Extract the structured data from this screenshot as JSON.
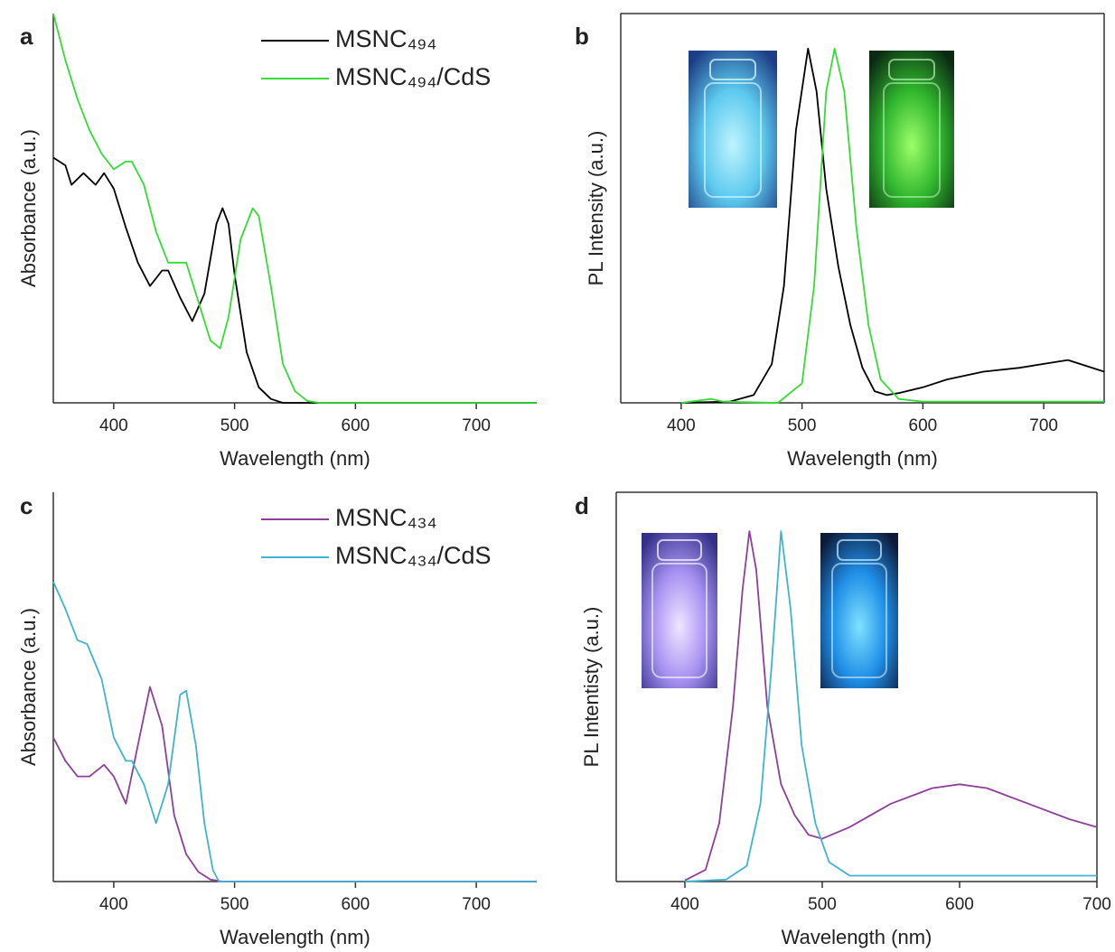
{
  "chart_data": [
    {
      "type": "line",
      "panel": "a",
      "xlabel": "Wavelength (nm)",
      "ylabel": "Absorbance (a.u.)",
      "xlim": [
        350,
        750
      ],
      "xticks": [
        400,
        500,
        600,
        700
      ],
      "ylim": [
        0,
        1
      ],
      "legend": "upper right",
      "box": false,
      "series": [
        {
          "name": "MSNC₄₉₄",
          "color": "#000000",
          "x": [
            350,
            360,
            365,
            375,
            385,
            392,
            400,
            410,
            420,
            430,
            440,
            445,
            455,
            465,
            475,
            485,
            490,
            495,
            500,
            510,
            520,
            530,
            540,
            750
          ],
          "values": [
            0.63,
            0.61,
            0.56,
            0.59,
            0.56,
            0.59,
            0.55,
            0.45,
            0.36,
            0.3,
            0.34,
            0.34,
            0.27,
            0.21,
            0.28,
            0.46,
            0.5,
            0.46,
            0.33,
            0.13,
            0.04,
            0.01,
            0,
            0
          ]
        },
        {
          "name": "MSNC₄₉₄/CdS",
          "color": "#33dd33",
          "x": [
            350,
            360,
            370,
            380,
            390,
            400,
            410,
            415,
            425,
            435,
            445,
            455,
            460,
            470,
            480,
            488,
            495,
            505,
            515,
            520,
            530,
            540,
            550,
            560,
            570,
            750
          ],
          "values": [
            1.0,
            0.88,
            0.78,
            0.7,
            0.64,
            0.6,
            0.62,
            0.62,
            0.56,
            0.44,
            0.36,
            0.36,
            0.36,
            0.26,
            0.16,
            0.14,
            0.22,
            0.42,
            0.5,
            0.48,
            0.3,
            0.1,
            0.03,
            0.005,
            0,
            0
          ]
        }
      ]
    },
    {
      "type": "line",
      "panel": "b",
      "xlabel": "Wavelength (nm)",
      "ylabel": "PL Intensity (a.u.)",
      "xlim": [
        350,
        750
      ],
      "xticks": [
        400,
        500,
        600,
        700
      ],
      "ylim": [
        0,
        1
      ],
      "box": true,
      "series": [
        {
          "name": "MSNC₄₉₄",
          "color": "#000000",
          "x": [
            400,
            440,
            460,
            475,
            485,
            495,
            505,
            512,
            520,
            530,
            540,
            550,
            560,
            570,
            580,
            600,
            620,
            650,
            680,
            700,
            720,
            750
          ],
          "values": [
            0,
            0.003,
            0.02,
            0.1,
            0.3,
            0.7,
            0.91,
            0.8,
            0.55,
            0.35,
            0.2,
            0.09,
            0.03,
            0.02,
            0.025,
            0.04,
            0.06,
            0.08,
            0.09,
            0.1,
            0.11,
            0.08
          ]
        },
        {
          "name": "MSNC₄₉₄/CdS",
          "color": "#33dd33",
          "x": [
            400,
            425,
            435,
            480,
            500,
            510,
            520,
            527,
            535,
            545,
            555,
            565,
            580,
            600,
            750
          ],
          "values": [
            0,
            0.01,
            0.003,
            0,
            0.05,
            0.3,
            0.8,
            0.91,
            0.8,
            0.45,
            0.2,
            0.06,
            0.01,
            0.003,
            0.003
          ]
        }
      ]
    },
    {
      "type": "line",
      "panel": "c",
      "xlabel": "Wavelength (nm)",
      "ylabel": "Absorbance (a.u.)",
      "xlim": [
        350,
        750
      ],
      "xticks": [
        400,
        500,
        600,
        700
      ],
      "ylim": [
        0,
        1
      ],
      "legend": "upper right",
      "box": false,
      "series": [
        {
          "name": "MSNC₄₃₄",
          "color": "#8e3f9a",
          "x": [
            350,
            360,
            370,
            380,
            392,
            400,
            410,
            420,
            430,
            440,
            450,
            460,
            470,
            480,
            490,
            750
          ],
          "values": [
            0.37,
            0.31,
            0.27,
            0.27,
            0.3,
            0.27,
            0.2,
            0.35,
            0.5,
            0.4,
            0.17,
            0.07,
            0.025,
            0.005,
            0,
            0
          ]
        },
        {
          "name": "MSNC₄₃₄/CdS",
          "color": "#3fb4d0",
          "x": [
            350,
            360,
            370,
            378,
            390,
            400,
            410,
            415,
            425,
            435,
            445,
            455,
            460,
            468,
            475,
            482,
            487,
            750
          ],
          "values": [
            0.77,
            0.7,
            0.62,
            0.61,
            0.52,
            0.37,
            0.31,
            0.31,
            0.25,
            0.15,
            0.25,
            0.48,
            0.49,
            0.35,
            0.15,
            0.03,
            0,
            0
          ]
        }
      ]
    },
    {
      "type": "line",
      "panel": "d",
      "xlabel": "Wavelength (nm)",
      "ylabel": "PL Intentisty (a.u.)",
      "xlim": [
        350,
        700
      ],
      "xticks": [
        400,
        500,
        600,
        700
      ],
      "ylim": [
        0,
        1
      ],
      "box": true,
      "series": [
        {
          "name": "MSNC₄₃₄",
          "color": "#8e3f9a",
          "x": [
            400,
            415,
            425,
            435,
            442,
            447,
            452,
            460,
            470,
            480,
            490,
            500,
            520,
            550,
            580,
            600,
            620,
            650,
            680,
            700
          ],
          "values": [
            0.003,
            0.03,
            0.15,
            0.45,
            0.75,
            0.9,
            0.8,
            0.45,
            0.25,
            0.17,
            0.12,
            0.11,
            0.14,
            0.2,
            0.24,
            0.25,
            0.24,
            0.2,
            0.16,
            0.14
          ]
        },
        {
          "name": "MSNC₄₃₄/CdS",
          "color": "#3fb4d0",
          "x": [
            400,
            430,
            445,
            455,
            463,
            470,
            477,
            485,
            495,
            505,
            520,
            560,
            700
          ],
          "values": [
            0,
            0.005,
            0.04,
            0.2,
            0.55,
            0.9,
            0.7,
            0.35,
            0.15,
            0.05,
            0.015,
            0.015,
            0.015
          ]
        }
      ]
    }
  ]
}
